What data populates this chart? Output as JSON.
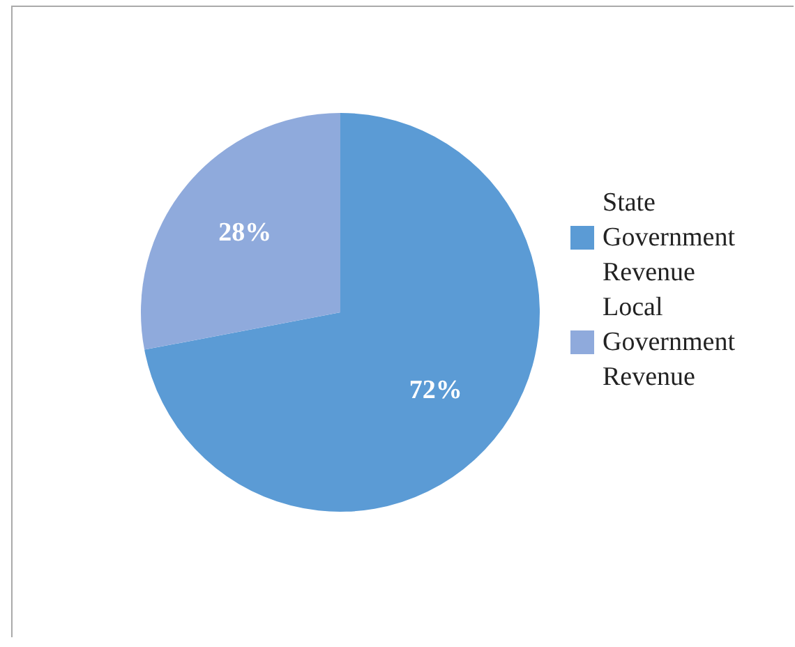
{
  "chart_data": {
    "type": "pie",
    "categories": [
      "State Government Revenue",
      "Local Government Revenue"
    ],
    "values": [
      72,
      28
    ],
    "colors": [
      "#5b9bd5",
      "#8faadc"
    ],
    "value_labels": [
      "72%",
      "28%"
    ],
    "legend": "right"
  }
}
